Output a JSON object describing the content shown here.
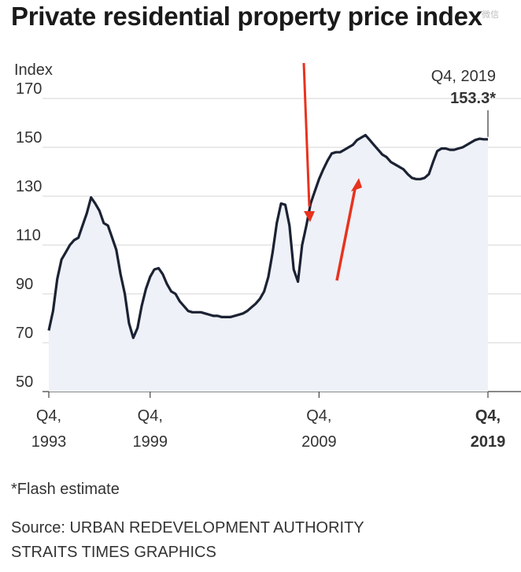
{
  "title": "Private residential property price index",
  "watermark": "微信",
  "chart_data": {
    "type": "area",
    "ylabel": "Index",
    "ylim": [
      50,
      170
    ],
    "yticks": [
      50,
      70,
      90,
      110,
      130,
      150,
      170
    ],
    "xtick_labels": [
      {
        "line1": "Q4,",
        "line2": "1993",
        "x": 1993.75,
        "bold": false
      },
      {
        "line1": "Q4,",
        "line2": "1999",
        "x": 1999.75,
        "bold": false
      },
      {
        "line1": "Q4,",
        "line2": "2009",
        "x": 2009.75,
        "bold": false
      },
      {
        "line1": "Q4,",
        "line2": "2019",
        "x": 2019.75,
        "bold": true
      }
    ],
    "xlim": [
      1993.75,
      2019.75
    ],
    "grid": true,
    "colors": {
      "line": "#1b2233",
      "fill": "#eef1f7",
      "grid": "#d6d6d6",
      "arrow": "#e8321e"
    },
    "annotation": {
      "label": "Q4, 2019",
      "value": "153.3*",
      "x": 2019.75,
      "y": 153.3
    },
    "series": [
      {
        "x": [
          1993.75,
          1994.0,
          1994.25,
          1994.5,
          1994.75,
          1995.0,
          1995.25,
          1995.5,
          1995.75,
          1996.0,
          1996.25,
          1996.5,
          1996.75,
          1997.0,
          1997.25,
          1997.5,
          1997.75,
          1998.0,
          1998.25,
          1998.5,
          1998.75,
          1999.0,
          1999.25,
          1999.5,
          1999.75,
          2000.0,
          2000.25,
          2000.5,
          2000.75,
          2001.0,
          2001.25,
          2001.5,
          2001.75,
          2002.0,
          2002.25,
          2002.5,
          2002.75,
          2003.0,
          2003.25,
          2003.5,
          2003.75,
          2004.0,
          2004.25,
          2004.5,
          2004.75,
          2005.0,
          2005.25,
          2005.5,
          2005.75,
          2006.0,
          2006.25,
          2006.5,
          2006.75,
          2007.0,
          2007.25,
          2007.5,
          2007.75,
          2008.0,
          2008.25,
          2008.5,
          2008.75,
          2009.0,
          2009.25,
          2009.5,
          2009.75,
          2010.0,
          2010.25,
          2010.5,
          2010.75,
          2011.0,
          2011.25,
          2011.5,
          2011.75,
          2012.0,
          2012.25,
          2012.5,
          2012.75,
          2013.0,
          2013.25,
          2013.5,
          2013.75,
          2014.0,
          2014.25,
          2014.5,
          2014.75,
          2015.0,
          2015.25,
          2015.5,
          2015.75,
          2016.0,
          2016.25,
          2016.5,
          2016.75,
          2017.0,
          2017.25,
          2017.5,
          2017.75,
          2018.0,
          2018.25,
          2018.5,
          2018.75,
          2019.0,
          2019.25,
          2019.5,
          2019.75
        ],
        "values": [
          75.0,
          83.0,
          96.0,
          104.0,
          107.0,
          110.0,
          112.0,
          113.0,
          118.0,
          123.0,
          129.5,
          127.0,
          124.0,
          119.0,
          118.0,
          113.0,
          108.0,
          98.0,
          90.0,
          78.0,
          72.0,
          76.0,
          85.0,
          92.0,
          97.0,
          100.0,
          100.5,
          98.0,
          94.0,
          91.0,
          90.0,
          87.0,
          85.0,
          83.0,
          82.5,
          82.5,
          82.5,
          82.0,
          81.5,
          81.0,
          81.0,
          80.5,
          80.5,
          80.5,
          81.0,
          81.5,
          82.0,
          83.0,
          84.5,
          86.0,
          88.0,
          91.0,
          97.0,
          107.0,
          119.0,
          127.0,
          126.5,
          118.0,
          100.0,
          95.0,
          110.0,
          118.0,
          127.0,
          132.0,
          137.0,
          141.0,
          144.5,
          147.5,
          148.0,
          148.0,
          149.0,
          150.0,
          151.0,
          153.0,
          154.0,
          155.0,
          153.0,
          151.0,
          149.0,
          147.0,
          146.0,
          144.0,
          143.0,
          142.0,
          141.0,
          139.0,
          137.5,
          137.0,
          137.0,
          137.5,
          139.0,
          144.0,
          148.5,
          149.5,
          149.5,
          149.0,
          149.0,
          149.5,
          150.0,
          151.0,
          152.0,
          153.0,
          153.5,
          153.3,
          153.3
        ]
      }
    ]
  },
  "footnote": "*Flash estimate",
  "source_line1": "Source: URBAN REDEVELOPMENT AUTHORITY",
  "source_line2": "STRAITS TIMES GRAPHICS"
}
